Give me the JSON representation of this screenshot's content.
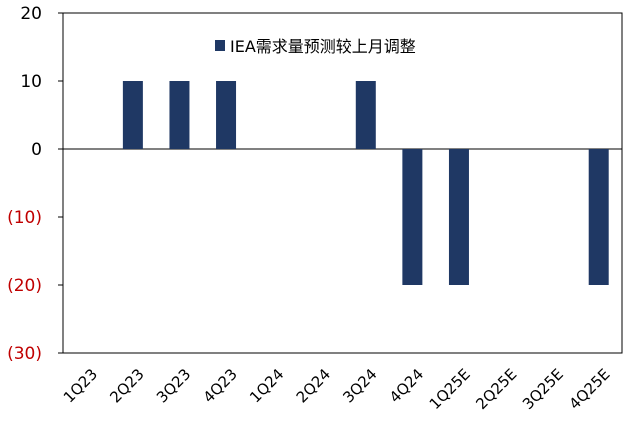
{
  "chart_data": {
    "type": "bar",
    "categories": [
      "1Q23",
      "2Q23",
      "3Q23",
      "4Q23",
      "1Q24",
      "2Q24",
      "3Q24",
      "4Q24",
      "1Q25E",
      "2Q25E",
      "3Q25E",
      "4Q25E"
    ],
    "series": [
      {
        "name": "IEA需求量预测较上月调整",
        "values": [
          0,
          10,
          10,
          10,
          0,
          0,
          10,
          -20,
          -20,
          0,
          0,
          -20
        ],
        "color": "#1f3864"
      }
    ],
    "ylim": [
      -30,
      20
    ],
    "yticks": [
      {
        "value": 20,
        "label": "20"
      },
      {
        "value": 10,
        "label": "10"
      },
      {
        "value": 0,
        "label": "0"
      },
      {
        "value": -10,
        "label": "(10)"
      },
      {
        "value": -20,
        "label": "(20)"
      },
      {
        "value": -30,
        "label": "(30)"
      }
    ],
    "negative_label_color": "#c00000",
    "grid": false,
    "legend_position": "top-center"
  }
}
